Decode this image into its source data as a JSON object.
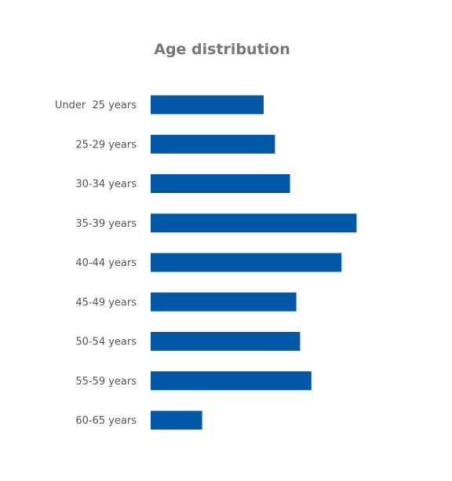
{
  "chart_data": {
    "type": "bar",
    "orientation": "horizontal",
    "title": "Age distribution",
    "categories": [
      "Under  25 years",
      "25-29 years",
      "30-34 years",
      "35-39 years",
      "40-44 years",
      "45-49 years",
      "50-54 years",
      "55-59 years",
      "60-65 years"
    ],
    "values": [
      9.0,
      9.9,
      11.1,
      16.4,
      15.2,
      11.6,
      11.9,
      12.8,
      4.1
    ],
    "xlim": [
      0,
      20
    ],
    "grid": false,
    "legend": "none",
    "bar_color": "#0058A6"
  }
}
